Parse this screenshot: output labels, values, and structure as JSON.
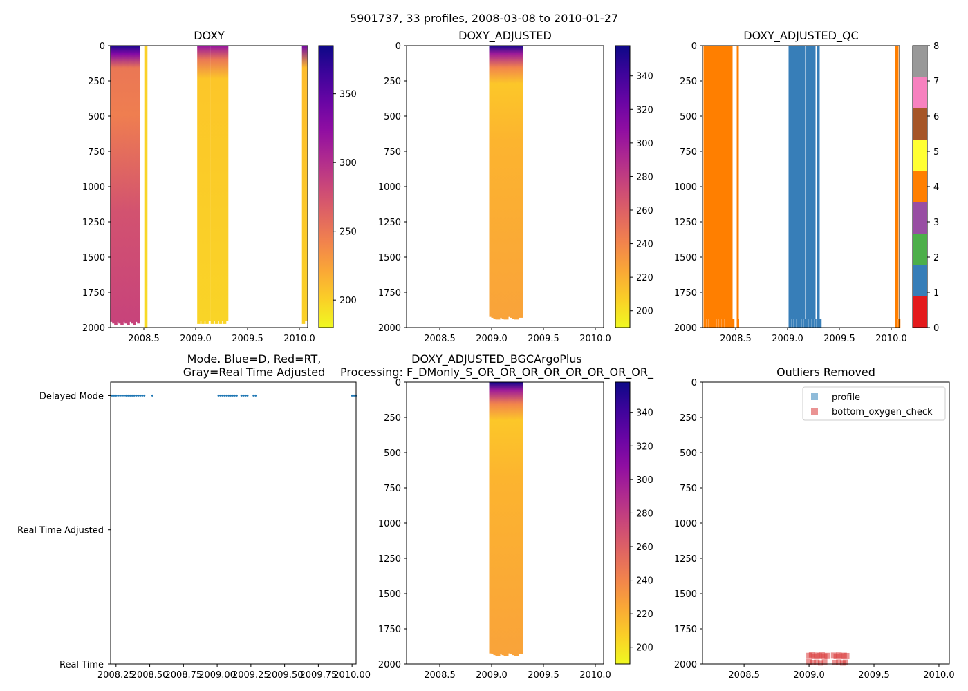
{
  "suptitle": "5901737, 33 profiles, 2008-03-08 to 2010-01-27",
  "colors": {
    "plasma": [
      "#0d0887",
      "#5302a3",
      "#8b0aa5",
      "#b83289",
      "#db5c68",
      "#f48849",
      "#febd2a",
      "#f0f921"
    ],
    "qc": [
      "#e41a1c",
      "#377eb8",
      "#4daf4a",
      "#984ea3",
      "#ff7f00",
      "#ffff33",
      "#a65628",
      "#f781bf",
      "#999999"
    ],
    "mode_points": "#1f77b4",
    "outlier_points": "#d62728"
  },
  "chart_data": [
    {
      "id": "doxy",
      "type": "heatmap",
      "title": "DOXY",
      "xlim": [
        2008.18,
        2010.08
      ],
      "ylim": [
        2000,
        0
      ],
      "xticks": [
        "2008.5",
        "2009.0",
        "2009.5",
        "2010.0"
      ],
      "xtick_values": [
        2008.5,
        2009.0,
        2009.5,
        2010.0
      ],
      "yticks": [
        "0",
        "250",
        "500",
        "750",
        "1000",
        "1250",
        "1500",
        "1750",
        "2000"
      ],
      "colorbar": {
        "cmap": "plasma",
        "range": [
          180,
          385
        ],
        "ticks": [
          "200",
          "250",
          "300",
          "350"
        ],
        "tick_values": [
          200,
          250,
          300,
          350
        ]
      },
      "profile_times": [
        2008.19,
        2008.21,
        2008.23,
        2008.25,
        2008.27,
        2008.29,
        2008.31,
        2008.33,
        2008.35,
        2008.37,
        2008.39,
        2008.41,
        2008.43,
        2008.45,
        2008.52,
        2009.03,
        2009.05,
        2009.07,
        2009.09,
        2009.11,
        2009.13,
        2009.16,
        2009.18,
        2009.2,
        2009.22,
        2009.24,
        2009.26,
        2009.28,
        2009.3,
        2010.04,
        2010.06
      ]
    },
    {
      "id": "doxy_adj",
      "type": "heatmap",
      "title": "DOXY_ADJUSTED",
      "xlim": [
        2008.18,
        2010.08
      ],
      "ylim": [
        2000,
        0
      ],
      "xticks": [
        "2008.5",
        "2009.0",
        "2009.5",
        "2010.0"
      ],
      "xtick_values": [
        2008.5,
        2009.0,
        2009.5,
        2010.0
      ],
      "yticks": [
        "0",
        "250",
        "500",
        "750",
        "1000",
        "1250",
        "1500",
        "1750",
        "2000"
      ],
      "colorbar": {
        "cmap": "plasma",
        "range": [
          190,
          358
        ],
        "ticks": [
          "200",
          "220",
          "240",
          "260",
          "280",
          "300",
          "320",
          "340"
        ],
        "tick_values": [
          200,
          220,
          240,
          260,
          280,
          300,
          320,
          340
        ]
      },
      "profile_times": [
        2009.0,
        2009.02,
        2009.04,
        2009.06,
        2009.08,
        2009.1,
        2009.12,
        2009.14,
        2009.18,
        2009.2,
        2009.22,
        2009.24,
        2009.26,
        2009.28
      ]
    },
    {
      "id": "doxy_qc",
      "type": "heatmap",
      "title": "DOXY_ADJUSTED_QC",
      "xlim": [
        2008.18,
        2010.08
      ],
      "ylim": [
        2000,
        0
      ],
      "xticks": [
        "2008.5",
        "2009.0",
        "2009.5",
        "2010.0"
      ],
      "xtick_values": [
        2008.5,
        2009.0,
        2009.5,
        2010.0
      ],
      "yticks": [
        "0",
        "250",
        "500",
        "750",
        "1000",
        "1250",
        "1500",
        "1750",
        "2000"
      ],
      "colorbar": {
        "cmap": "qc",
        "range": [
          0,
          8
        ],
        "ticks": [
          "0",
          "1",
          "2",
          "3",
          "4",
          "5",
          "6",
          "7",
          "8"
        ],
        "tick_values": [
          0,
          1,
          2,
          3,
          4,
          5,
          6,
          7,
          8
        ]
      },
      "segments": [
        {
          "from": 2008.19,
          "to": 2008.47,
          "qc": 4
        },
        {
          "from": 2008.51,
          "to": 2008.53,
          "qc": 4
        },
        {
          "from": 2009.01,
          "to": 2009.17,
          "qc": 1
        },
        {
          "from": 2009.18,
          "to": 2009.27,
          "qc": 1
        },
        {
          "from": 2009.28,
          "to": 2009.31,
          "qc": 1
        },
        {
          "from": 2010.04,
          "to": 2010.07,
          "qc": 4
        }
      ]
    },
    {
      "id": "mode",
      "type": "scatter",
      "title": "Mode. Blue=D, Red=RT,",
      "title2": "Gray=Real Time Adjusted",
      "xlim": [
        2008.21,
        2010.03
      ],
      "xticks": [
        "2008.25",
        "2008.50",
        "2008.75",
        "2009.00",
        "2009.25",
        "2009.50",
        "2009.75",
        "2010.00"
      ],
      "xtick_values": [
        2008.25,
        2008.5,
        2008.75,
        2009.0,
        2009.25,
        2009.5,
        2009.75,
        2010.0
      ],
      "yticks": [
        "Delayed Mode",
        "Real Time Adjusted",
        "Real Time"
      ],
      "ytick_values": [
        2,
        1,
        0
      ],
      "ylim": [
        0,
        2.1
      ],
      "x": [
        2008.22,
        2008.235,
        2008.25,
        2008.265,
        2008.28,
        2008.295,
        2008.31,
        2008.325,
        2008.34,
        2008.355,
        2008.37,
        2008.385,
        2008.4,
        2008.415,
        2008.43,
        2008.445,
        2008.46,
        2008.52,
        2009.01,
        2009.025,
        2009.04,
        2009.055,
        2009.07,
        2009.085,
        2009.1,
        2009.115,
        2009.13,
        2009.145,
        2009.18,
        2009.195,
        2009.21,
        2009.225,
        2009.27,
        2009.285,
        2010.0,
        2010.015,
        2010.03
      ],
      "y_mode": "Delayed Mode"
    },
    {
      "id": "bgc",
      "type": "heatmap",
      "title": "DOXY_ADJUSTED_BGCArgoPlus",
      "title2": "Processing: F_DMonly_S_OR_OR_OR_OR_OR_OR_OR_OR_",
      "xlim": [
        2008.18,
        2010.08
      ],
      "ylim": [
        2000,
        0
      ],
      "xticks": [
        "2008.5",
        "2009.0",
        "2009.5",
        "2010.0"
      ],
      "xtick_values": [
        2008.5,
        2009.0,
        2009.5,
        2010.0
      ],
      "yticks": [
        "0",
        "250",
        "500",
        "750",
        "1000",
        "1250",
        "1500",
        "1750",
        "2000"
      ],
      "colorbar": {
        "cmap": "plasma",
        "range": [
          190,
          358
        ],
        "ticks": [
          "200",
          "220",
          "240",
          "260",
          "280",
          "300",
          "320",
          "340"
        ],
        "tick_values": [
          200,
          220,
          240,
          260,
          280,
          300,
          320,
          340
        ]
      },
      "profile_times": [
        2009.0,
        2009.02,
        2009.04,
        2009.06,
        2009.08,
        2009.1,
        2009.12,
        2009.14,
        2009.18,
        2009.2,
        2009.22,
        2009.24,
        2009.26,
        2009.28
      ]
    },
    {
      "id": "outliers",
      "type": "scatter",
      "title": "Outliers Removed",
      "xlim": [
        2008.18,
        2010.08
      ],
      "ylim": [
        2000,
        0
      ],
      "xticks": [
        "2008.5",
        "2009.0",
        "2009.5",
        "2010.0"
      ],
      "xtick_values": [
        2008.5,
        2009.0,
        2009.5,
        2010.0
      ],
      "yticks": [
        "0",
        "250",
        "500",
        "750",
        "1000",
        "1250",
        "1500",
        "1750",
        "2000"
      ],
      "legend": [
        "profile",
        "bottom_oxygen_check"
      ],
      "legend_loc": "top-right",
      "points": [
        [
          2009.0,
          1940
        ],
        [
          2009.02,
          1935
        ],
        [
          2009.04,
          1945
        ],
        [
          2009.06,
          1938
        ],
        [
          2009.08,
          1942
        ],
        [
          2009.1,
          1936
        ],
        [
          2009.12,
          1944
        ],
        [
          2009.14,
          1940
        ],
        [
          2009.0,
          1985
        ],
        [
          2009.03,
          1990
        ],
        [
          2009.06,
          1988
        ],
        [
          2009.09,
          1992
        ],
        [
          2009.12,
          1986
        ],
        [
          2009.19,
          1938
        ],
        [
          2009.21,
          1945
        ],
        [
          2009.23,
          1937
        ],
        [
          2009.25,
          1943
        ],
        [
          2009.27,
          1939
        ],
        [
          2009.29,
          1941
        ],
        [
          2009.2,
          1990
        ],
        [
          2009.23,
          1987
        ],
        [
          2009.26,
          1992
        ],
        [
          2009.28,
          1988
        ]
      ]
    }
  ]
}
